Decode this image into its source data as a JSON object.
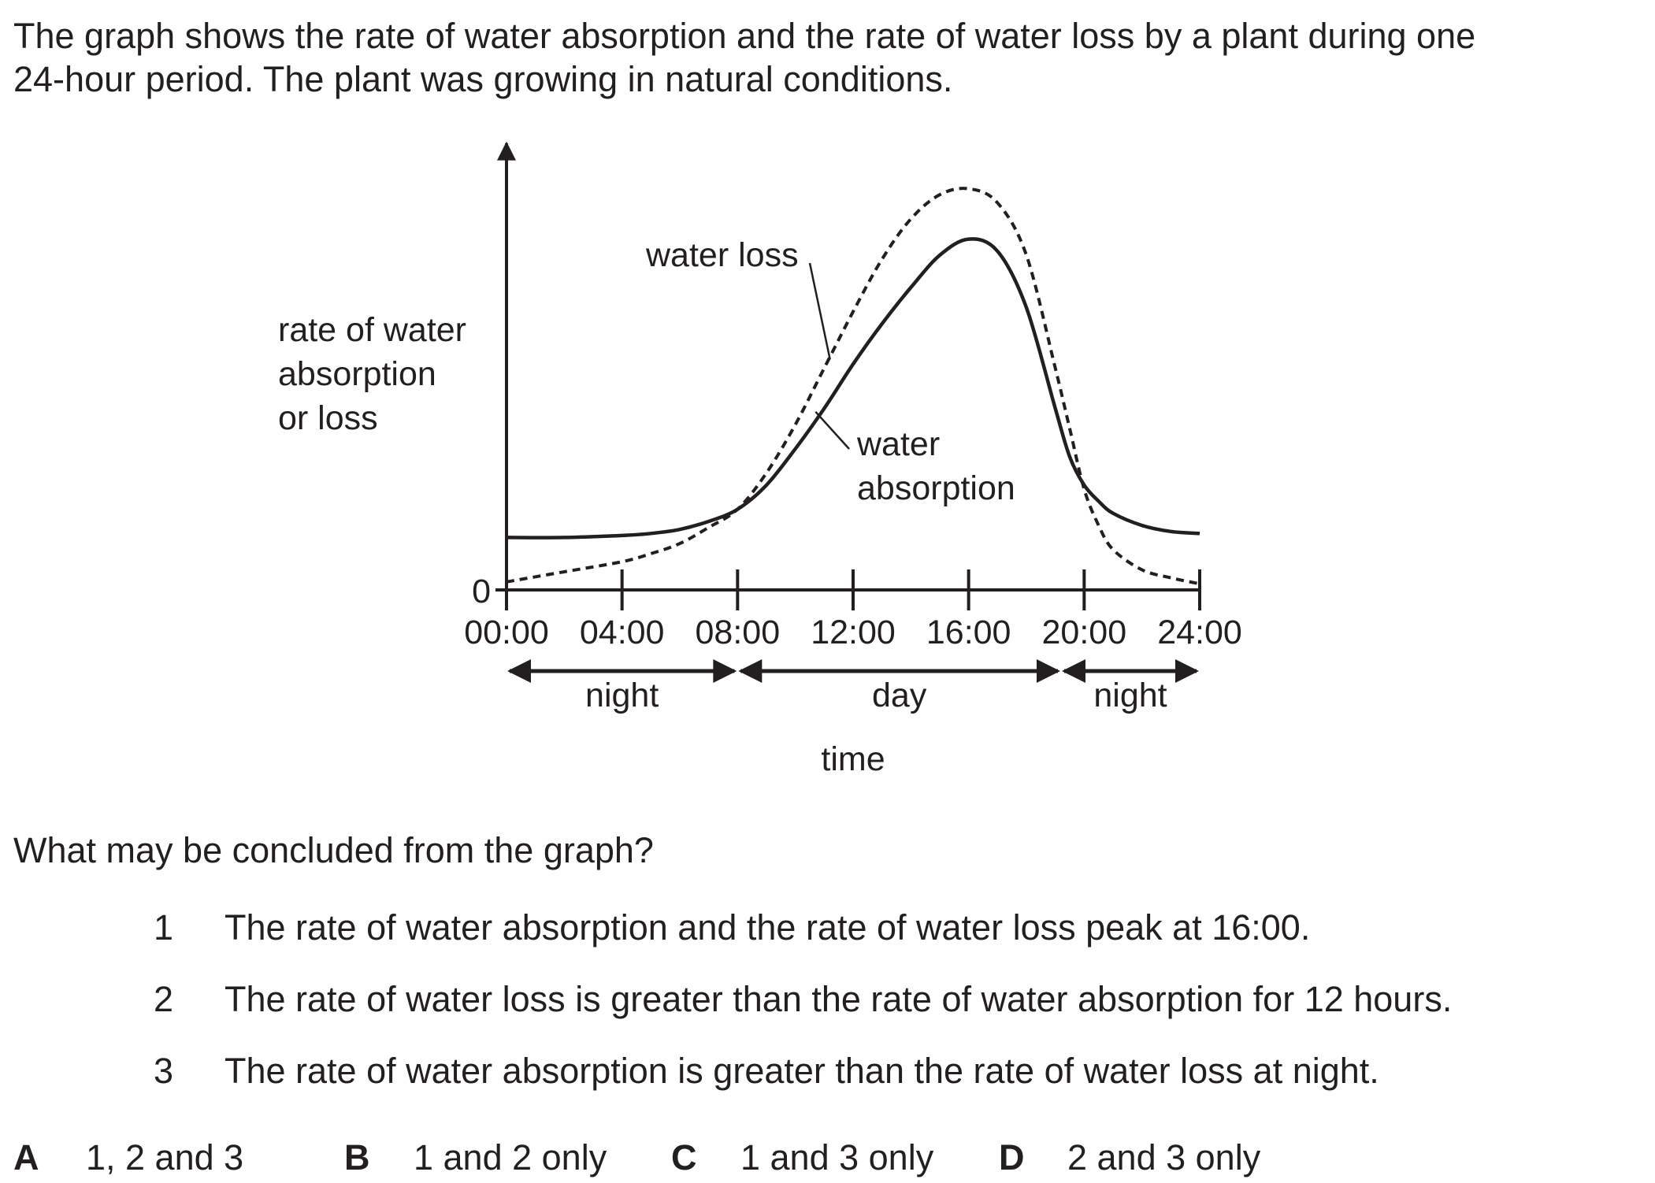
{
  "intro": {
    "line1": "The graph shows the rate of water absorption and the rate of water loss by a plant during one",
    "line2": "24-hour period. The plant was growing in natural conditions."
  },
  "chart_data": {
    "type": "line",
    "ylabel_lines": [
      "rate of water",
      "absorption",
      "or loss"
    ],
    "y_tick_labels": [
      "0"
    ],
    "xlabel": "time",
    "x_tick_labels": [
      "00:00",
      "04:00",
      "08:00",
      "12:00",
      "16:00",
      "20:00",
      "24:00"
    ],
    "xlim": [
      0,
      24
    ],
    "ylim": [
      0,
      10
    ],
    "periods": [
      {
        "label": "night",
        "start": 0,
        "end": 8
      },
      {
        "label": "day",
        "start": 8,
        "end": 19.2
      },
      {
        "label": "night",
        "start": 19.2,
        "end": 24
      }
    ],
    "series": [
      {
        "name": "water loss",
        "style": "dashed",
        "x": [
          0,
          2,
          4,
          5,
          6,
          7,
          8,
          9,
          10,
          11,
          12,
          13,
          14,
          15,
          16,
          17,
          18,
          19,
          19.5,
          20,
          20.5,
          21,
          22,
          23,
          24
        ],
        "y": [
          0.2,
          0.45,
          0.7,
          0.9,
          1.15,
          1.55,
          2.0,
          2.9,
          4.1,
          5.5,
          6.9,
          8.2,
          9.2,
          9.8,
          9.95,
          9.6,
          8.3,
          5.5,
          4.0,
          2.5,
          1.6,
          1.0,
          0.5,
          0.3,
          0.15
        ],
        "label_lines": [
          "water loss"
        ]
      },
      {
        "name": "water absorption",
        "style": "solid",
        "x": [
          0,
          2,
          4,
          5,
          6,
          7,
          8,
          9,
          10,
          11,
          12,
          13,
          14,
          15,
          16,
          17,
          18,
          19,
          19.5,
          20,
          20.5,
          21,
          22,
          23,
          24
        ],
        "y": [
          1.3,
          1.3,
          1.35,
          1.4,
          1.5,
          1.7,
          2.0,
          2.6,
          3.5,
          4.5,
          5.6,
          6.6,
          7.5,
          8.3,
          8.7,
          8.4,
          7.0,
          4.5,
          3.3,
          2.6,
          2.2,
          1.9,
          1.6,
          1.45,
          1.4
        ],
        "label_lines": [
          "water",
          "absorption"
        ]
      }
    ],
    "color": "#231f20"
  },
  "question": "What may be concluded from the graph?",
  "statements": [
    {
      "num": "1",
      "text": "The rate of water absorption and the rate of water loss peak at 16:00."
    },
    {
      "num": "2",
      "text": "The rate of water loss is greater than the rate of water absorption for 12 hours."
    },
    {
      "num": "3",
      "text": "The rate of water absorption is greater than the rate of water loss at night."
    }
  ],
  "options": [
    {
      "letter": "A",
      "text": "1, 2 and 3"
    },
    {
      "letter": "B",
      "text": "1 and 2 only"
    },
    {
      "letter": "C",
      "text": "1 and 3 only"
    },
    {
      "letter": "D",
      "text": "2 and 3 only"
    }
  ]
}
